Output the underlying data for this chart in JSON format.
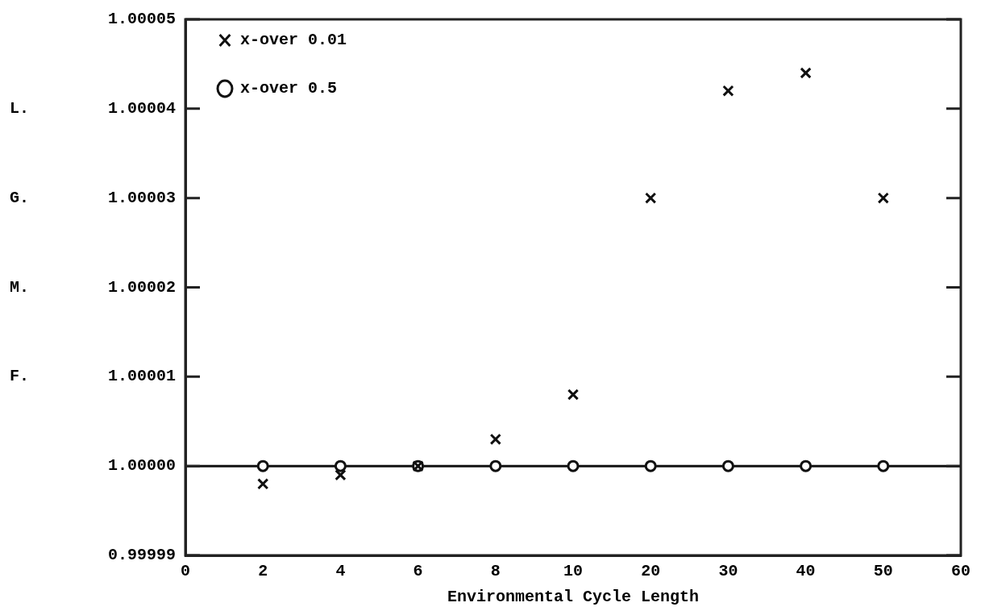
{
  "chart_data": {
    "type": "scatter",
    "xlabel": "Environmental Cycle Length",
    "ylabel": "L. G. M. F.",
    "categories": [
      "0",
      "2",
      "4",
      "6",
      "8",
      "10",
      "20",
      "30",
      "40",
      "50",
      "60"
    ],
    "series": [
      {
        "name": "x-over 0.01",
        "color": "#111111",
        "marker": "cross",
        "values": [
          null,
          0.999998,
          0.999999,
          1.0,
          1.000003,
          1.000008,
          1.00003,
          1.000042,
          1.000044,
          1.00003,
          null
        ]
      },
      {
        "name": "x-over 0.5",
        "color": "#111111",
        "marker": "circle",
        "values": [
          null,
          1.0,
          1.0,
          1.0,
          1.0,
          1.0,
          1.0,
          1.0,
          1.0,
          1.0,
          null
        ]
      }
    ],
    "ylim": [
      0.99999,
      1.00005
    ],
    "yticks": [
      0.99999,
      {
        "value": 1,
        "label": "1.00000"
      },
      1.00001,
      1.00002,
      1.00003,
      1.00004,
      1.00005
    ],
    "ref_lines": [
      {
        "axis": "y",
        "value": 1,
        "color": "#111111",
        "line_style": "solid"
      }
    ],
    "legend": "top left",
    "grid": false
  }
}
